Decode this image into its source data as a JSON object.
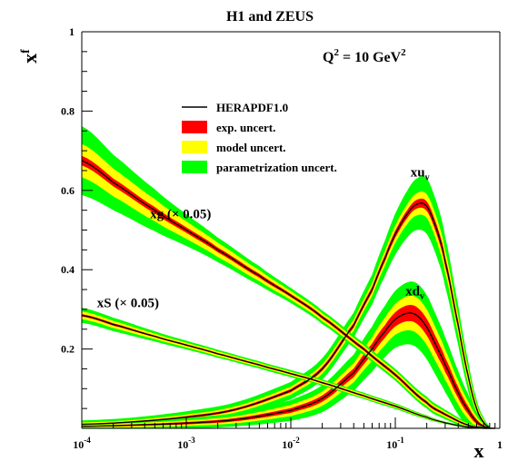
{
  "chart_data": {
    "type": "line",
    "title": "H1 and ZEUS",
    "ylabel_main": "xf",
    "xlabel": "x",
    "x_scale": "log",
    "xlim": [
      0.0001,
      1
    ],
    "ylim": [
      0,
      1
    ],
    "grid": false,
    "x_ticks": [
      {
        "value": 0.0001,
        "base": "10",
        "exp": "-4"
      },
      {
        "value": 0.001,
        "base": "10",
        "exp": "-3"
      },
      {
        "value": 0.01,
        "base": "10",
        "exp": "-2"
      },
      {
        "value": 0.1,
        "base": "10",
        "exp": "-1"
      },
      {
        "value": 1,
        "base": "1",
        "exp": ""
      }
    ],
    "y_ticks": [
      {
        "value": 0.2,
        "label": "0.2"
      },
      {
        "value": 0.4,
        "label": "0.4"
      },
      {
        "value": 0.6,
        "label": "0.6"
      },
      {
        "value": 0.8,
        "label": "0.8"
      },
      {
        "value": 1.0,
        "label": "1"
      }
    ],
    "scale_annotation": {
      "text_main": "Q",
      "sup1": "2",
      "text_mid": " = 10 GeV",
      "sup2": "2"
    },
    "legend": {
      "placement": "upper-middle",
      "entries": [
        {
          "kind": "line",
          "label": "HERAPDF1.0",
          "color": "#000000"
        },
        {
          "kind": "box",
          "label": "exp. uncert.",
          "color": "#ff0000"
        },
        {
          "kind": "box",
          "label": "model uncert.",
          "color": "#ffff00"
        },
        {
          "kind": "box",
          "label": "parametrization uncert.",
          "color": "#00ff00"
        }
      ]
    },
    "colors": {
      "central": "#000000",
      "exp": "#ff0000",
      "model": "#ffff00",
      "param": "#00ff00"
    },
    "series": [
      {
        "name": "xu_v",
        "label_main": "xu",
        "label_sub": "v",
        "label_at": {
          "x": 0.14,
          "y": 0.635
        },
        "x": [
          0.0001,
          0.0003,
          0.001,
          0.003,
          0.01,
          0.02,
          0.04,
          0.06,
          0.08,
          0.1,
          0.13,
          0.16,
          0.2,
          0.25,
          0.3,
          0.4,
          0.5,
          0.6,
          0.7,
          0.8
        ],
        "y": [
          0.01,
          0.016,
          0.028,
          0.048,
          0.095,
          0.15,
          0.26,
          0.35,
          0.43,
          0.49,
          0.54,
          0.565,
          0.56,
          0.5,
          0.42,
          0.26,
          0.13,
          0.05,
          0.015,
          0.002
        ],
        "exp": [
          0.002,
          0.002,
          0.003,
          0.003,
          0.004,
          0.005,
          0.006,
          0.007,
          0.008,
          0.009,
          0.01,
          0.011,
          0.012,
          0.012,
          0.012,
          0.01,
          0.008,
          0.005,
          0.003,
          0.001
        ],
        "model": [
          0.003,
          0.003,
          0.004,
          0.005,
          0.006,
          0.007,
          0.008,
          0.009,
          0.011,
          0.013,
          0.015,
          0.017,
          0.018,
          0.018,
          0.017,
          0.014,
          0.011,
          0.007,
          0.004,
          0.001
        ],
        "param": [
          0.005,
          0.006,
          0.008,
          0.01,
          0.012,
          0.015,
          0.018,
          0.022,
          0.026,
          0.03,
          0.034,
          0.037,
          0.04,
          0.038,
          0.034,
          0.026,
          0.018,
          0.01,
          0.005,
          0.002
        ]
      },
      {
        "name": "xd_v",
        "label_main": "xd",
        "label_sub": "v",
        "label_at": {
          "x": 0.125,
          "y": 0.335
        },
        "x": [
          0.0001,
          0.0003,
          0.001,
          0.003,
          0.01,
          0.02,
          0.04,
          0.06,
          0.08,
          0.1,
          0.13,
          0.16,
          0.2,
          0.25,
          0.3,
          0.4,
          0.5,
          0.6,
          0.7,
          0.8
        ],
        "y": [
          0.005,
          0.008,
          0.013,
          0.022,
          0.045,
          0.075,
          0.14,
          0.2,
          0.245,
          0.275,
          0.29,
          0.285,
          0.255,
          0.205,
          0.16,
          0.09,
          0.045,
          0.017,
          0.005,
          0.001
        ],
        "exp": [
          0.001,
          0.002,
          0.003,
          0.004,
          0.006,
          0.008,
          0.011,
          0.014,
          0.016,
          0.018,
          0.02,
          0.021,
          0.021,
          0.02,
          0.018,
          0.014,
          0.01,
          0.006,
          0.003,
          0.001
        ],
        "model": [
          0.002,
          0.003,
          0.004,
          0.005,
          0.008,
          0.01,
          0.013,
          0.016,
          0.019,
          0.021,
          0.023,
          0.024,
          0.024,
          0.022,
          0.02,
          0.016,
          0.012,
          0.007,
          0.004,
          0.001
        ],
        "param": [
          0.003,
          0.004,
          0.006,
          0.008,
          0.012,
          0.016,
          0.022,
          0.027,
          0.03,
          0.033,
          0.035,
          0.036,
          0.036,
          0.034,
          0.031,
          0.025,
          0.018,
          0.011,
          0.006,
          0.002
        ]
      },
      {
        "name": "xg (× 0.05)",
        "label_main": "xg (",
        "label_rest": "× 0.05)",
        "label_at": {
          "x": 0.00045,
          "y": 0.53
        },
        "x": [
          0.0001,
          0.0002,
          0.0005,
          0.001,
          0.002,
          0.005,
          0.01,
          0.02,
          0.05,
          0.1,
          0.2,
          0.3,
          0.5,
          0.7,
          0.9
        ],
        "y": [
          0.675,
          0.62,
          0.55,
          0.5,
          0.45,
          0.385,
          0.335,
          0.28,
          0.2,
          0.135,
          0.065,
          0.035,
          0.008,
          0.002,
          0.0
        ],
        "exp": [
          0.012,
          0.01,
          0.008,
          0.007,
          0.006,
          0.005,
          0.004,
          0.004,
          0.004,
          0.004,
          0.004,
          0.003,
          0.002,
          0.001,
          0.0
        ],
        "model": [
          0.03,
          0.025,
          0.02,
          0.015,
          0.012,
          0.009,
          0.007,
          0.006,
          0.005,
          0.005,
          0.005,
          0.004,
          0.002,
          0.001,
          0.0
        ],
        "param": [
          0.045,
          0.035,
          0.025,
          0.018,
          0.013,
          0.01,
          0.008,
          0.007,
          0.006,
          0.006,
          0.006,
          0.005,
          0.003,
          0.001,
          0.0
        ]
      },
      {
        "name": "xS (× 0.05)",
        "label_main": "xS (",
        "label_rest": "× 0.05)",
        "label_at": {
          "x": 0.00014,
          "y": 0.305
        },
        "x": [
          0.0001,
          0.0002,
          0.0005,
          0.001,
          0.002,
          0.005,
          0.01,
          0.02,
          0.05,
          0.1,
          0.2,
          0.3,
          0.5,
          0.7,
          0.9
        ],
        "y": [
          0.285,
          0.262,
          0.232,
          0.21,
          0.188,
          0.16,
          0.138,
          0.115,
          0.082,
          0.056,
          0.028,
          0.014,
          0.003,
          0.0,
          0.0
        ],
        "exp": [
          0.003,
          0.003,
          0.002,
          0.002,
          0.002,
          0.002,
          0.002,
          0.002,
          0.002,
          0.002,
          0.001,
          0.001,
          0.0,
          0.0,
          0.0
        ],
        "model": [
          0.007,
          0.006,
          0.005,
          0.004,
          0.004,
          0.003,
          0.003,
          0.003,
          0.003,
          0.002,
          0.002,
          0.001,
          0.001,
          0.0,
          0.0
        ],
        "param": [
          0.009,
          0.008,
          0.006,
          0.005,
          0.004,
          0.004,
          0.004,
          0.003,
          0.003,
          0.003,
          0.002,
          0.001,
          0.001,
          0.0,
          0.0
        ]
      }
    ]
  }
}
